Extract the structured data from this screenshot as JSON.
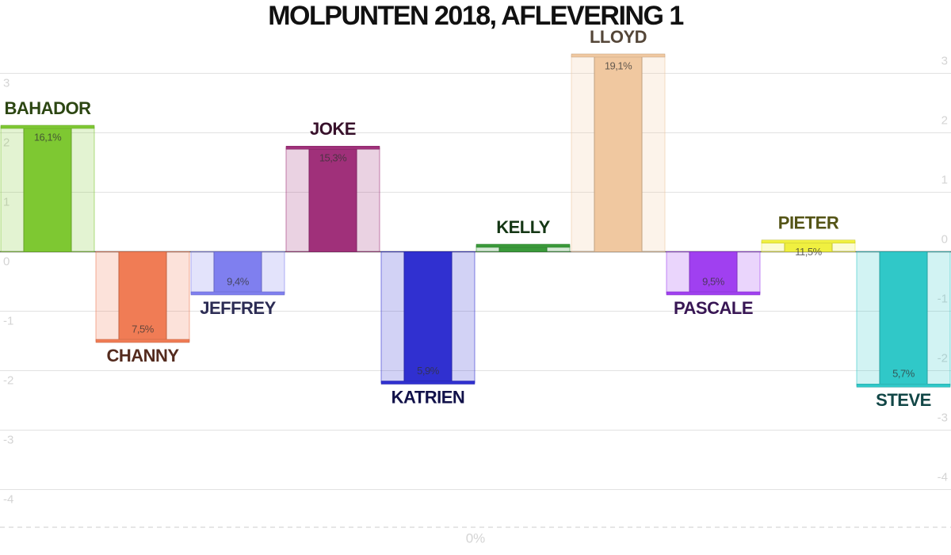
{
  "chart_data": {
    "type": "bar",
    "title": "MOLPUNTEN 2018, AFLEVERING 1",
    "categories": [
      "BAHADOR",
      "CHANNY",
      "JEFFREY",
      "JOKE",
      "KATRIEN",
      "KELLY",
      "LLOYD",
      "PASCALE",
      "PIETER",
      "STEVE"
    ],
    "values": [
      2.1,
      -1.5,
      -0.7,
      1.75,
      -2.2,
      0.1,
      3.3,
      -0.7,
      0.17,
      -2.25
    ],
    "percent_labels": [
      "16,1%",
      "7,5%",
      "9,4%",
      "15,3%",
      "5,9%",
      "",
      "19,1%",
      "9,5%",
      "11,5%",
      "5,7%"
    ],
    "colors": [
      "#7ec832",
      "#f07c55",
      "#7f7fef",
      "#a0307a",
      "#3030d0",
      "#3a9a3a",
      "#f0c8a0",
      "#a040f0",
      "#f0f040",
      "#30c8c8"
    ],
    "ylim": [
      -4.6,
      3.3
    ],
    "yticks": [
      3,
      2,
      1,
      0,
      -1,
      -2,
      -3,
      -4
    ],
    "grid": true,
    "baseline_label": "0%"
  }
}
